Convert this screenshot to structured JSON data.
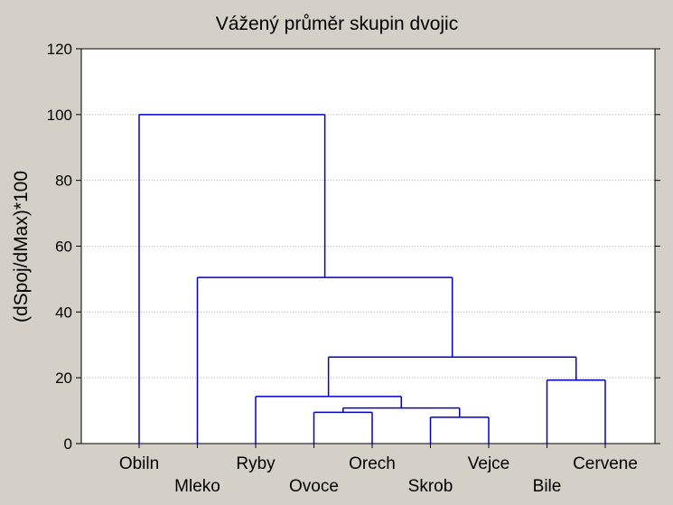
{
  "chart_data": {
    "type": "dendrogram",
    "title": "Vážený průměr skupin dvojic",
    "xlabel": "",
    "ylabel": "(dSpoj/dMax)*100",
    "ylim": [
      0,
      120
    ],
    "yticks": [
      0,
      20,
      40,
      60,
      80,
      100,
      120
    ],
    "grid": true,
    "leaves": [
      "Obiln",
      "Mleko",
      "Ryby",
      "Ovoce",
      "Orech",
      "Skrob",
      "Vejce",
      "Bile",
      "Cervene"
    ],
    "merges": [
      {
        "left": "Ovoce",
        "right": "Orech",
        "height": 9.5
      },
      {
        "left": "Skrob",
        "right": "Vejce",
        "height": 8.0
      },
      {
        "left": "Ovoce+Orech",
        "right": "Skrob+Vejce",
        "height": 10.8
      },
      {
        "left": "Ryby",
        "right": "Ovoce+Orech+Skrob+Vejce",
        "height": 14.3
      },
      {
        "left": "Bile",
        "right": "Cervene",
        "height": 19.3
      },
      {
        "left": "Ryby…Vejce",
        "right": "Bile+Cervene",
        "height": 26.3
      },
      {
        "left": "Mleko",
        "right": "Ryby…Cervene",
        "height": 50.5
      },
      {
        "left": "Obiln",
        "right": "Mleko…Cervene",
        "height": 100.0
      }
    ],
    "colors": {
      "line": "#0000cc",
      "plot_bg": "#ffffff",
      "frame_bg": "#d4d0c8",
      "grid": "#a0a0a0"
    }
  }
}
